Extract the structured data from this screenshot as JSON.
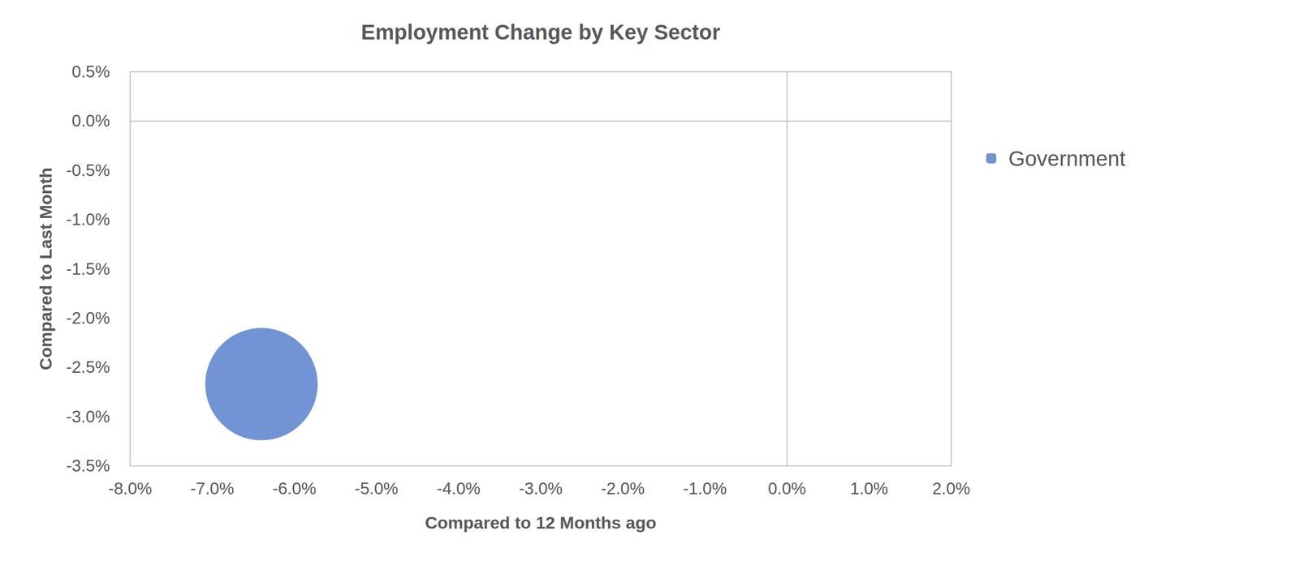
{
  "chart_data": {
    "type": "scatter",
    "title": "Employment Change by Key Sector",
    "x_label": "Compared to 12 Months ago",
    "y_label": "Compared to Last Month",
    "series": [
      {
        "name": "Government",
        "color": "#7294d4",
        "marker": "circle",
        "x": [
          -6.4
        ],
        "values": [
          -2.67
        ]
      }
    ],
    "xlim": [
      -8,
      2
    ],
    "xticks": [
      {
        "value": -8,
        "label": "-8.0%"
      },
      {
        "value": -7,
        "label": "-7.0%"
      },
      {
        "value": -6,
        "label": "-6.0%"
      },
      {
        "value": -5,
        "label": "-5.0%"
      },
      {
        "value": -4,
        "label": "-4.0%"
      },
      {
        "value": -3,
        "label": "-3.0%"
      },
      {
        "value": -2,
        "label": "-2.0%"
      },
      {
        "value": -1,
        "label": "-1.0%"
      },
      {
        "value": 0,
        "label": "0.0%"
      },
      {
        "value": 1,
        "label": "1.0%"
      },
      {
        "value": 2,
        "label": "2.0%"
      }
    ],
    "ylim": [
      -3.5,
      0.5
    ],
    "yticks": [
      {
        "value": 0.5,
        "label": "0.5%"
      },
      {
        "value": 0,
        "label": "0.0%"
      },
      {
        "value": -0.5,
        "label": "-0.5%"
      },
      {
        "value": -1,
        "label": "-1.0%"
      },
      {
        "value": -1.5,
        "label": "-1.5%"
      },
      {
        "value": -2,
        "label": "-2.0%"
      },
      {
        "value": -2.5,
        "label": "-2.5%"
      },
      {
        "value": -3,
        "label": "-3.0%"
      },
      {
        "value": -3.5,
        "label": "-3.5%"
      }
    ],
    "grid": false,
    "legend": "right"
  }
}
